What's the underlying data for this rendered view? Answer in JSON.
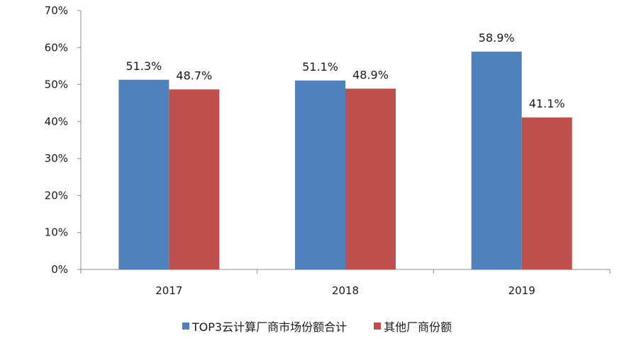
{
  "chart_data": {
    "type": "bar",
    "categories": [
      "2017",
      "2018",
      "2019"
    ],
    "series": [
      {
        "name": "TOP3云计算厂商市场份额合计",
        "values": [
          51.3,
          51.1,
          58.9
        ],
        "labels": [
          "51.3%",
          "51.1%",
          "58.9%"
        ],
        "color": "#4f81bd"
      },
      {
        "name": "其他厂商份额",
        "values": [
          48.7,
          48.9,
          41.1
        ],
        "labels": [
          "48.7%",
          "48.9%",
          "41.1%"
        ],
        "color": "#c0504d"
      }
    ],
    "y_ticks": [
      "0%",
      "10%",
      "20%",
      "30%",
      "40%",
      "50%",
      "60%",
      "70%"
    ],
    "ylim": [
      0,
      70
    ],
    "grid": false,
    "legend_position": "bottom"
  }
}
